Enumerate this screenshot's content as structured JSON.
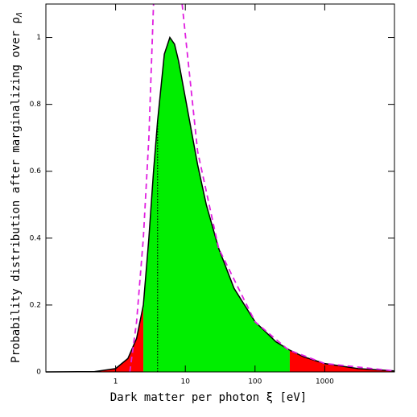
{
  "chart_data": {
    "type": "line",
    "xscale": "log",
    "xlabel": "Dark matter per photon ξ [eV]",
    "ylabel": "Probability distribution after marginalizing over ρ",
    "ylabel_sub": "Λ",
    "xlim": [
      0.1,
      10000
    ],
    "ylim": [
      0,
      1.1
    ],
    "xticks": [
      1,
      10,
      100,
      1000
    ],
    "yticks": [
      0,
      0.2,
      0.4,
      0.6,
      0.8,
      1
    ],
    "curve": {
      "color": "#000000",
      "x": [
        0.1,
        0.5,
        1,
        1.5,
        2,
        2.5,
        3,
        3.5,
        4,
        5,
        6,
        7,
        8,
        10,
        15,
        20,
        30,
        50,
        100,
        200,
        315,
        500,
        1000,
        3000,
        10000
      ],
      "y": [
        0,
        0.001,
        0.01,
        0.04,
        0.1,
        0.2,
        0.4,
        0.6,
        0.75,
        0.95,
        1,
        0.98,
        0.93,
        0.82,
        0.62,
        0.5,
        0.37,
        0.25,
        0.15,
        0.09,
        0.065,
        0.045,
        0.025,
        0.01,
        0.003
      ]
    },
    "asymptotes": [
      {
        "color": "#e020e0",
        "x": [
          1.6,
          2,
          2.5,
          3,
          3.5
        ],
        "y": [
          0,
          0.15,
          0.4,
          0.7,
          1.1
        ]
      },
      {
        "color": "#e020e0",
        "x": [
          9,
          15,
          30,
          100,
          300,
          1000,
          10000
        ],
        "y": [
          1.1,
          0.66,
          0.37,
          0.15,
          0.066,
          0.025,
          0.003
        ]
      }
    ],
    "shading": {
      "lower": 2.5,
      "upper": 315,
      "inner_color": "#00ee00",
      "outer_color": "#ff0000"
    },
    "marker_x": 4
  }
}
